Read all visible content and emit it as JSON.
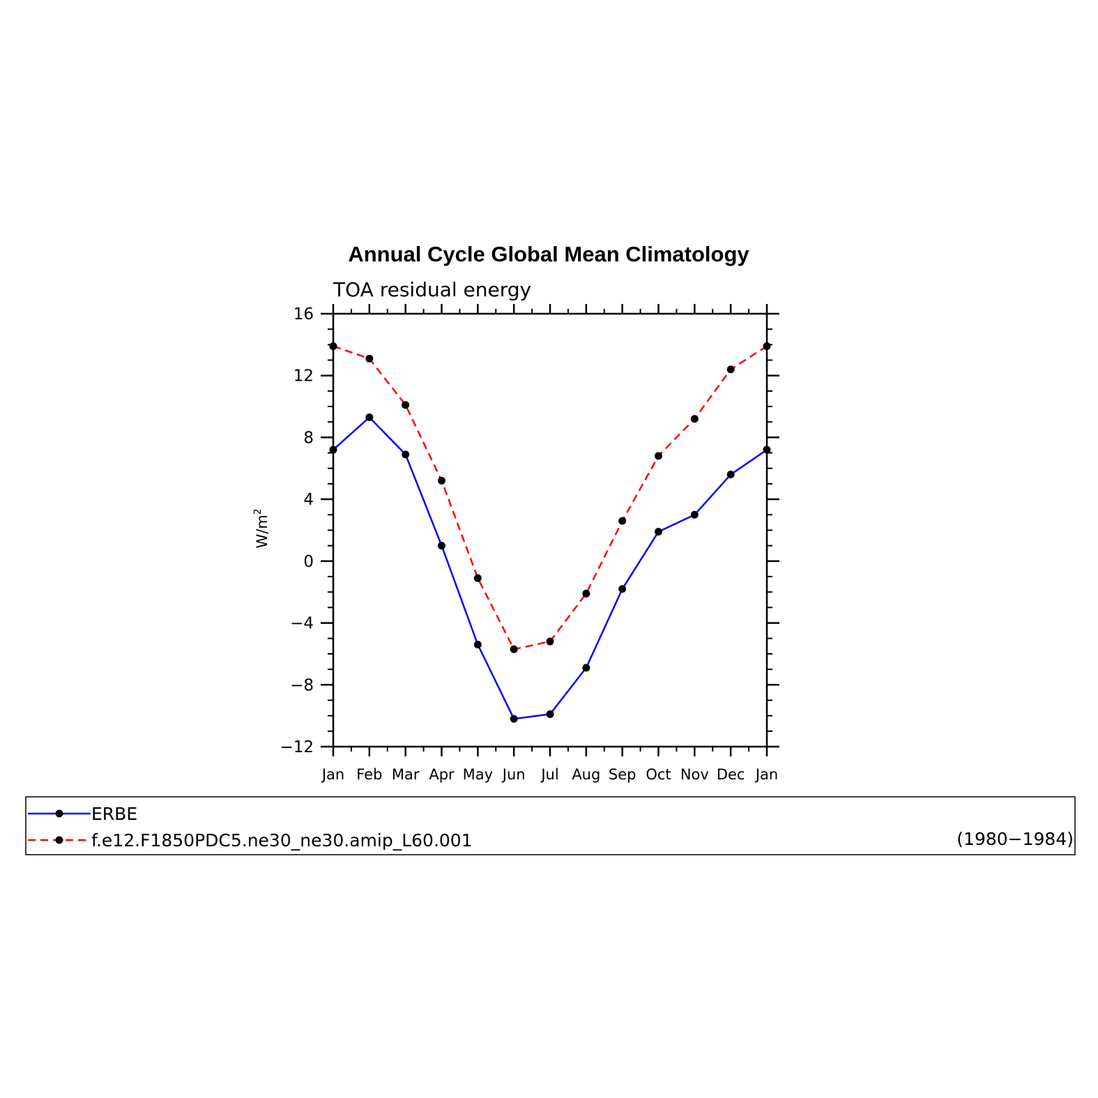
{
  "chart_data": {
    "type": "line",
    "title": "Annual Cycle Global Mean Climatology",
    "subtitle": "TOA residual energy",
    "ylabel": "W/m",
    "ylabel_superscript": "2",
    "categories": [
      "Jan",
      "Feb",
      "Mar",
      "Apr",
      "May",
      "Jun",
      "Jul",
      "Aug",
      "Sep",
      "Oct",
      "Nov",
      "Dec",
      "Jan"
    ],
    "ylim": [
      -12,
      16
    ],
    "yticks": [
      16,
      12,
      8,
      4,
      0,
      -4,
      -8,
      -12
    ],
    "ytick_labels": [
      "16",
      "12",
      "8",
      "4",
      "0",
      "−4",
      "−8",
      "−12"
    ],
    "grid": false,
    "legend_position": "bottom",
    "series": [
      {
        "name": "ERBE",
        "color": "#0000ff",
        "line_style": "solid",
        "marker": "filled-circle",
        "values": [
          7.2,
          9.3,
          6.9,
          1.0,
          -5.4,
          -10.2,
          -9.9,
          -6.9,
          -1.8,
          1.9,
          3.0,
          5.6,
          7.2
        ]
      },
      {
        "name": "f.e12.F1850PDC5.ne30_ne30.amip_L60.001",
        "color": "#ff0000",
        "line_style": "dashed",
        "marker": "filled-circle",
        "values": [
          13.9,
          13.1,
          10.1,
          5.2,
          -1.1,
          -5.7,
          -5.2,
          -2.1,
          2.6,
          6.8,
          9.2,
          12.4,
          13.9
        ]
      }
    ],
    "legend_note": "(1980−1984)"
  }
}
